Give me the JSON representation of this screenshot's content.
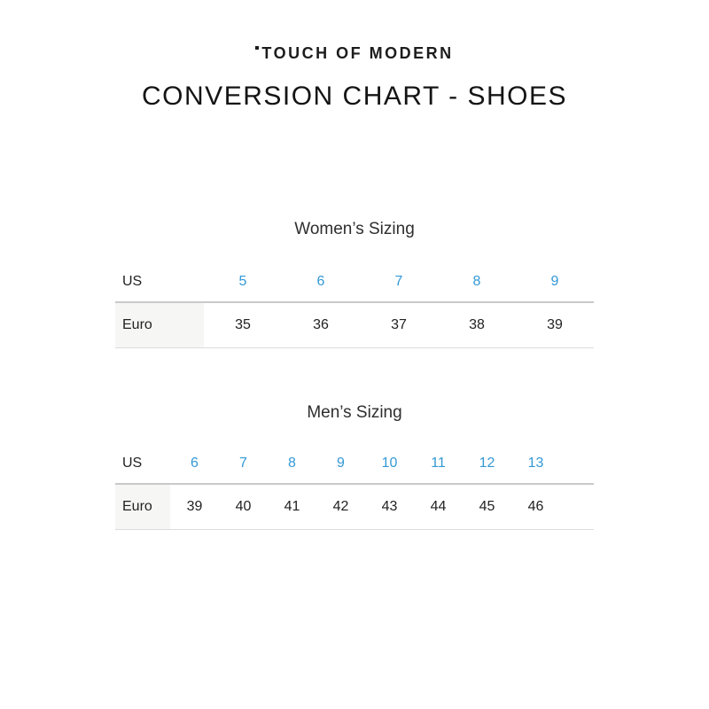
{
  "header": {
    "brand": "TOUCH OF MODERN",
    "title": "CONVERSION CHART - SHOES"
  },
  "colors": {
    "accent_blue": "#3399d6",
    "heading_text": "#141414",
    "body_text": "#222222",
    "divider_strong": "#c9c9c9",
    "divider_light": "#dcdcdc",
    "label_cell_bg": "#f6f6f5",
    "background": "#ffffff"
  },
  "chart_data": [
    {
      "type": "table",
      "title": "Women’s Sizing",
      "rows": [
        [
          "US",
          "5",
          "6",
          "7",
          "8",
          "9"
        ],
        [
          "Euro",
          "35",
          "36",
          "37",
          "38",
          "39"
        ]
      ],
      "layout": {
        "us_row_color": "#3399d6",
        "euro_row_color": "#222222",
        "grid": "horizontal-only"
      }
    },
    {
      "type": "table",
      "title": "Men’s Sizing",
      "rows": [
        [
          "US",
          "6",
          "7",
          "8",
          "9",
          "10",
          "11",
          "12",
          "13"
        ],
        [
          "Euro",
          "39",
          "40",
          "41",
          "42",
          "43",
          "44",
          "45",
          "46"
        ]
      ],
      "layout": {
        "us_row_color": "#3399d6",
        "euro_row_color": "#222222",
        "grid": "horizontal-only"
      }
    }
  ]
}
